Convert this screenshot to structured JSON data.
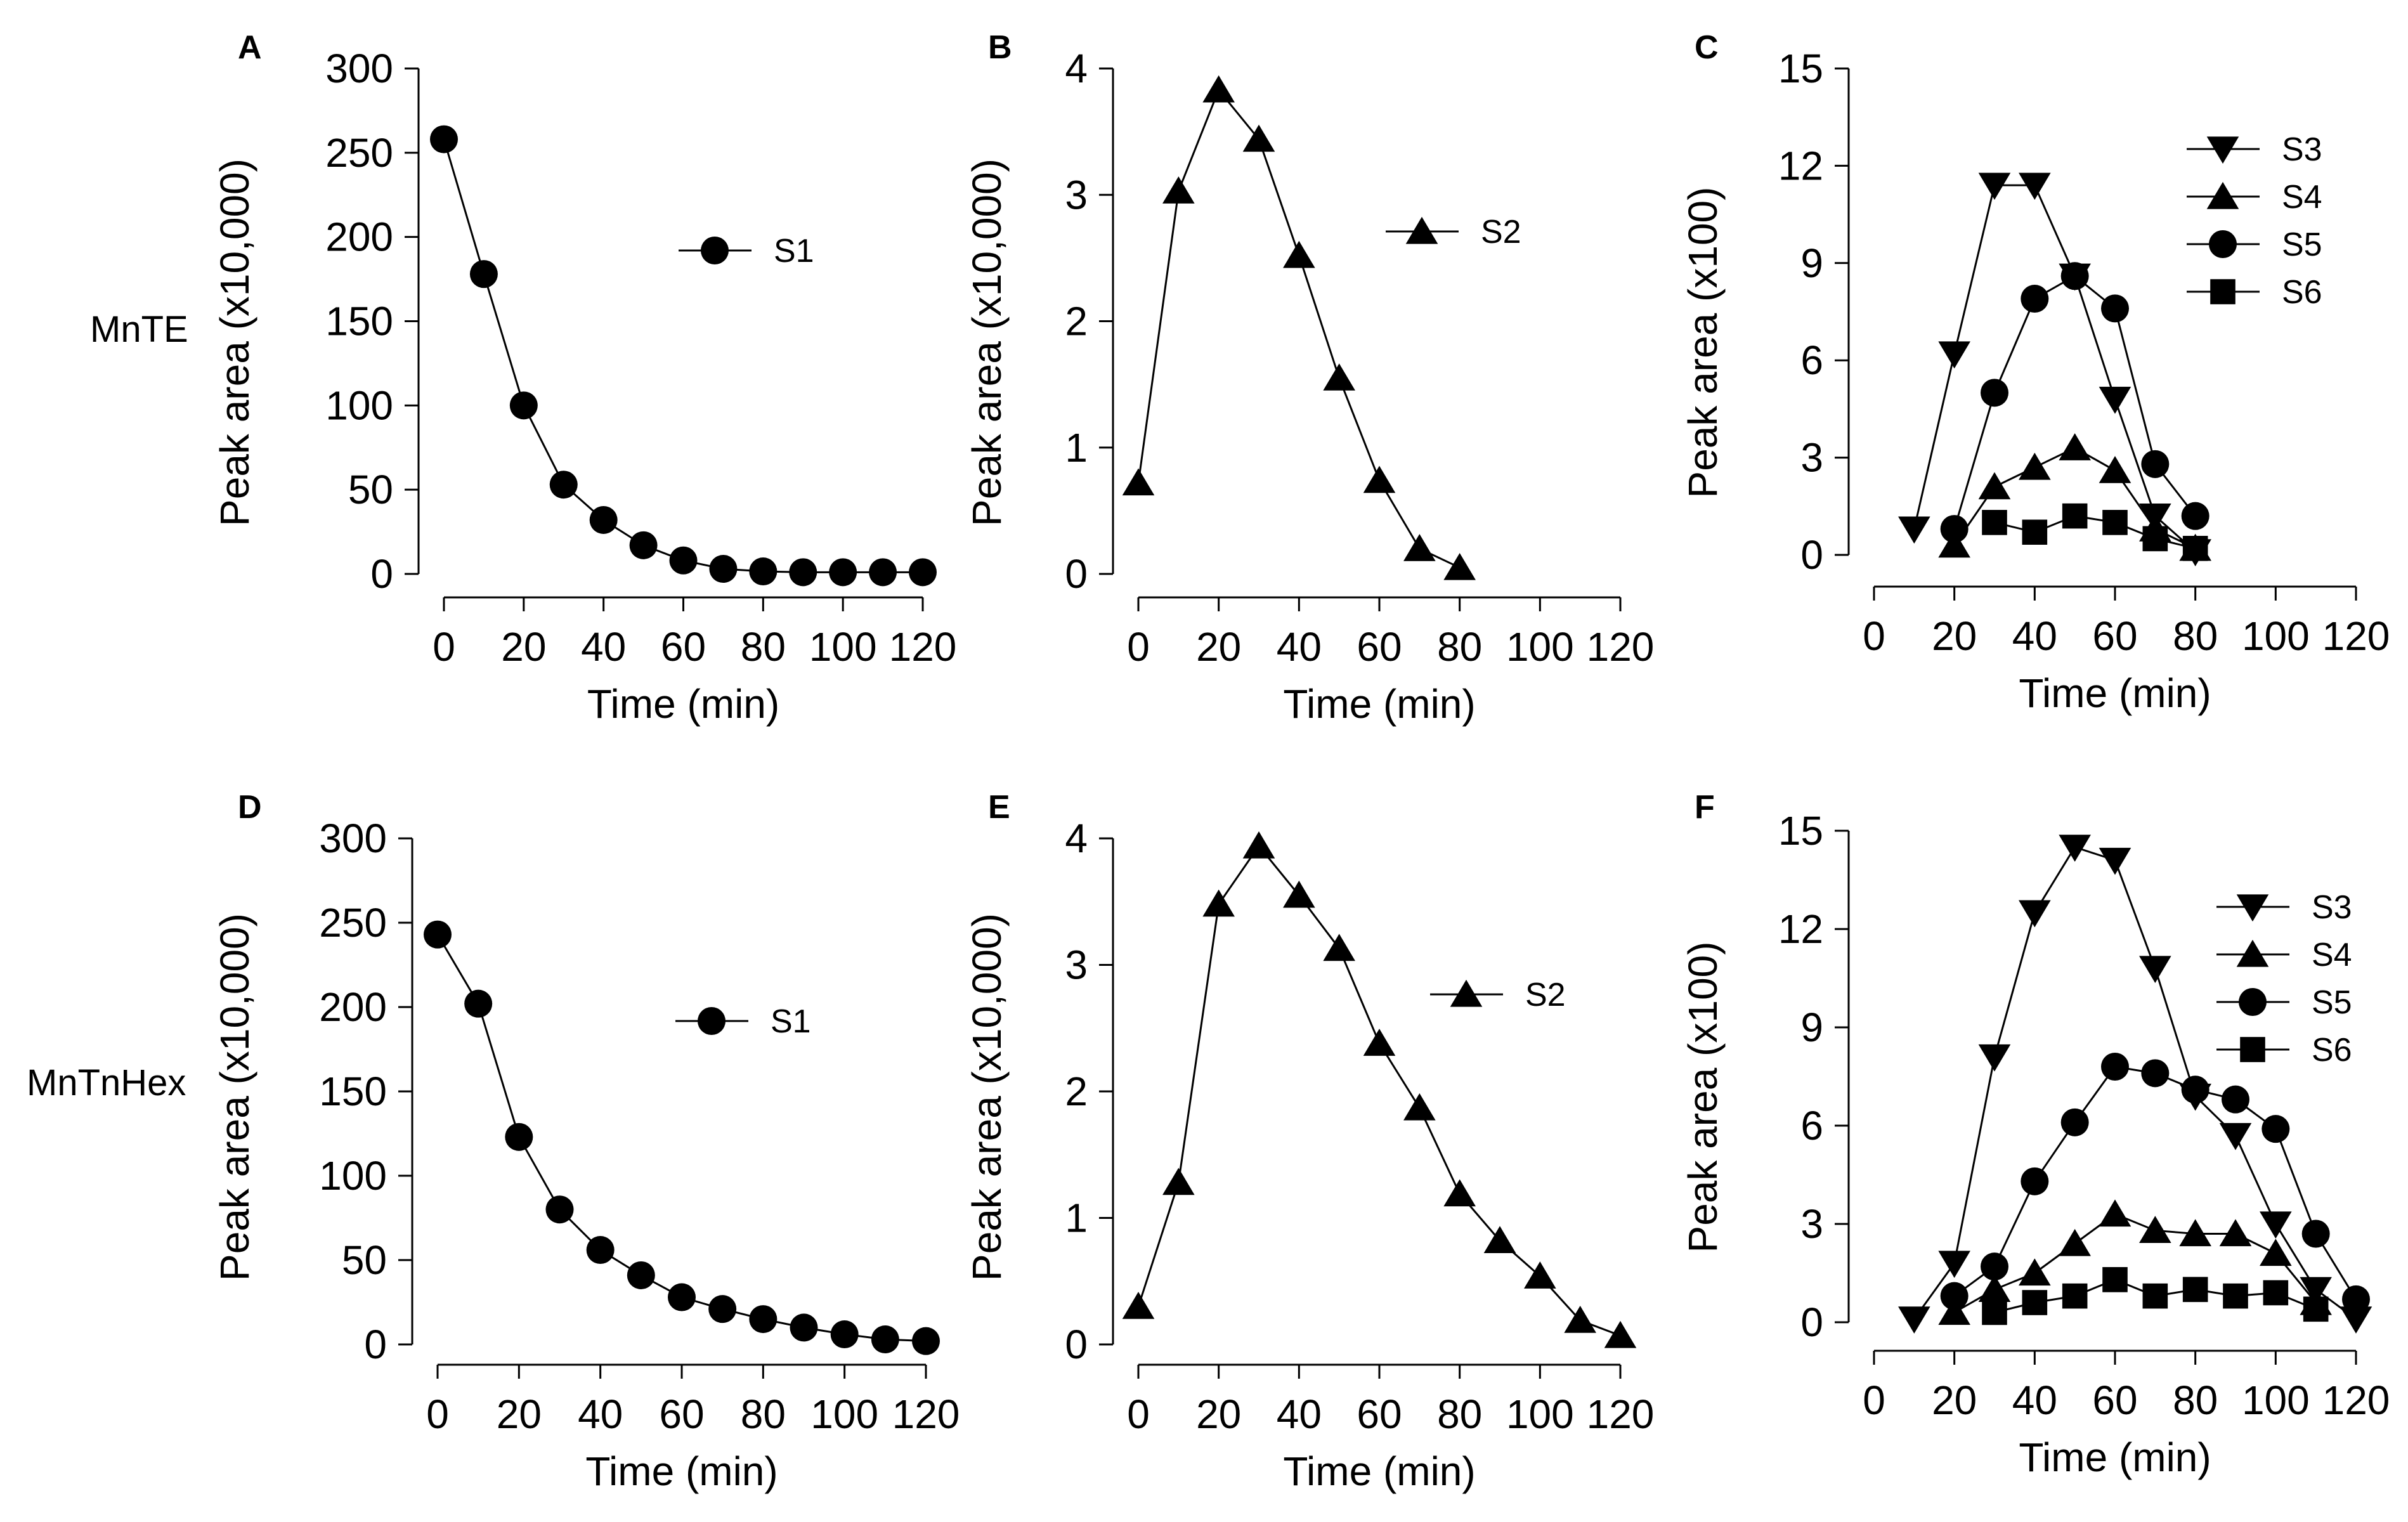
{
  "colors": {
    "ink": "#000000",
    "background": "#ffffff"
  },
  "row_labels": [
    "MnTE",
    "MnTnHex"
  ],
  "chart_data": [
    {
      "panel": "A",
      "type": "line",
      "xlabel": "Time (min)",
      "ylabel": "Peak area (x10,000)",
      "xlim": [
        0,
        120
      ],
      "ylim": [
        0,
        300
      ],
      "xticks": [
        "0",
        "20",
        "40",
        "60",
        "80",
        "100",
        "120"
      ],
      "yticks": [
        "0",
        "50",
        "100",
        "150",
        "200",
        "250",
        "300"
      ],
      "legend_position": "center",
      "series": [
        {
          "name": "S1",
          "marker": "circle",
          "x": [
            0,
            10,
            20,
            30,
            40,
            50,
            60,
            70,
            80,
            90,
            100,
            110,
            120
          ],
          "y": [
            258,
            178,
            100,
            53,
            32,
            17,
            8,
            3,
            1.5,
            1,
            1,
            1,
            1
          ]
        }
      ]
    },
    {
      "panel": "B",
      "type": "line",
      "xlabel": "Time (min)",
      "ylabel": "Peak area (x10,000)",
      "xlim": [
        0,
        120
      ],
      "ylim": [
        0,
        4
      ],
      "xticks": [
        "0",
        "20",
        "40",
        "60",
        "80",
        "100",
        "120"
      ],
      "yticks": [
        "0",
        "1",
        "2",
        "3",
        "4"
      ],
      "legend_position": "center-right",
      "series": [
        {
          "name": "S2",
          "marker": "triangle-up",
          "x": [
            0,
            10,
            20,
            30,
            40,
            50,
            60,
            70,
            80
          ],
          "y": [
            0.72,
            3.03,
            3.83,
            3.44,
            2.52,
            1.55,
            0.74,
            0.2,
            0.05
          ]
        }
      ]
    },
    {
      "panel": "C",
      "type": "line",
      "xlabel": "Time (min)",
      "ylabel": "Peak area (x100)",
      "xlim": [
        0,
        120
      ],
      "ylim": [
        0,
        15
      ],
      "xticks": [
        "0",
        "20",
        "40",
        "60",
        "80",
        "100",
        "120"
      ],
      "yticks": [
        "0",
        "3",
        "6",
        "9",
        "12",
        "15"
      ],
      "legend_position": "top-right",
      "series": [
        {
          "name": "S3",
          "marker": "triangle-down",
          "x": [
            10,
            20,
            30,
            40,
            50,
            60,
            70,
            80
          ],
          "y": [
            0.8,
            6.2,
            11.4,
            11.4,
            8.6,
            4.8,
            1.2,
            0.1
          ]
        },
        {
          "name": "S4",
          "marker": "triangle-up",
          "x": [
            20,
            30,
            40,
            50,
            60,
            70,
            80
          ],
          "y": [
            0.3,
            2.1,
            2.7,
            3.3,
            2.6,
            0.8,
            0.2
          ]
        },
        {
          "name": "S5",
          "marker": "circle",
          "x": [
            20,
            30,
            40,
            50,
            60,
            70,
            80
          ],
          "y": [
            0.8,
            5.0,
            7.9,
            8.6,
            7.6,
            2.8,
            1.2
          ]
        },
        {
          "name": "S6",
          "marker": "square",
          "x": [
            30,
            40,
            50,
            60,
            70,
            80
          ],
          "y": [
            1.0,
            0.7,
            1.2,
            1.0,
            0.5,
            0.2
          ]
        }
      ]
    },
    {
      "panel": "D",
      "type": "line",
      "xlabel": "Time (min)",
      "ylabel": "Peak area (x10,000)",
      "xlim": [
        0,
        120
      ],
      "ylim": [
        0,
        300
      ],
      "xticks": [
        "0",
        "20",
        "40",
        "60",
        "80",
        "100",
        "120"
      ],
      "yticks": [
        "0",
        "50",
        "100",
        "150",
        "200",
        "250",
        "300"
      ],
      "legend_position": "center",
      "series": [
        {
          "name": "S1",
          "marker": "circle",
          "x": [
            0,
            10,
            20,
            30,
            40,
            50,
            60,
            70,
            80,
            90,
            100,
            110,
            120
          ],
          "y": [
            243,
            202,
            123,
            80,
            56,
            41,
            28,
            21,
            15,
            10,
            6,
            3,
            2
          ]
        }
      ]
    },
    {
      "panel": "E",
      "type": "line",
      "xlabel": "Time (min)",
      "ylabel": "Peak area (x10,000)",
      "xlim": [
        0,
        120
      ],
      "ylim": [
        0,
        4
      ],
      "xticks": [
        "0",
        "20",
        "40",
        "60",
        "80",
        "100",
        "120"
      ],
      "yticks": [
        "0",
        "1",
        "2",
        "3",
        "4"
      ],
      "legend_position": "center-right",
      "series": [
        {
          "name": "S2",
          "marker": "triangle-up",
          "x": [
            0,
            10,
            20,
            30,
            40,
            50,
            60,
            70,
            80,
            90,
            100,
            110,
            120
          ],
          "y": [
            0.3,
            1.28,
            3.48,
            3.94,
            3.55,
            3.13,
            2.38,
            1.87,
            1.19,
            0.82,
            0.54,
            0.19,
            0.07
          ]
        }
      ]
    },
    {
      "panel": "F",
      "type": "line",
      "xlabel": "Time (min)",
      "ylabel": "Peak area (x100)",
      "xlim": [
        0,
        120
      ],
      "ylim": [
        0,
        15
      ],
      "xticks": [
        "0",
        "20",
        "40",
        "60",
        "80",
        "100",
        "120"
      ],
      "yticks": [
        "0",
        "3",
        "6",
        "9",
        "12",
        "15"
      ],
      "legend_position": "top-right",
      "series": [
        {
          "name": "S3",
          "marker": "triangle-down",
          "x": [
            10,
            20,
            30,
            40,
            50,
            60,
            70,
            80,
            90,
            100,
            110,
            120
          ],
          "y": [
            0.1,
            1.8,
            8.1,
            12.5,
            14.5,
            14.1,
            10.8,
            6.9,
            5.7,
            3.0,
            1.0,
            0.1
          ]
        },
        {
          "name": "S4",
          "marker": "triangle-up",
          "x": [
            20,
            30,
            40,
            50,
            60,
            70,
            80,
            90,
            100,
            110
          ],
          "y": [
            0.3,
            1.0,
            1.5,
            2.4,
            3.3,
            2.8,
            2.7,
            2.7,
            2.1,
            0.6
          ]
        },
        {
          "name": "S5",
          "marker": "circle",
          "x": [
            20,
            30,
            40,
            50,
            60,
            70,
            80,
            90,
            100,
            110,
            120
          ],
          "y": [
            0.8,
            1.7,
            4.3,
            6.1,
            7.8,
            7.6,
            7.1,
            6.8,
            5.9,
            2.7,
            0.7
          ]
        },
        {
          "name": "S6",
          "marker": "square",
          "x": [
            30,
            40,
            50,
            60,
            70,
            80,
            90,
            100,
            110
          ],
          "y": [
            0.3,
            0.6,
            0.8,
            1.3,
            0.8,
            1.0,
            0.8,
            0.9,
            0.4
          ]
        }
      ]
    }
  ]
}
